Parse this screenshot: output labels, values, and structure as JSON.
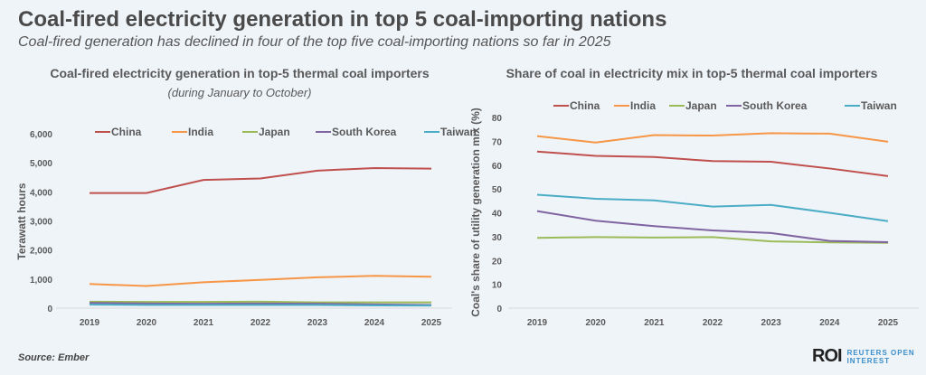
{
  "title": "Coal-fired electricity generation in top 5 coal-importing nations",
  "subtitle": "Coal-fired generation has declined in four of the top five coal-importing nations so far in 2025",
  "source": "Source:  Ember",
  "logo": {
    "mark": "ROI",
    "line1": "REUTERS OPEN",
    "line2": "INTEREST"
  },
  "colors": {
    "China": "#c0504d",
    "India": "#f79646",
    "Japan": "#9bbb59",
    "South Korea": "#8064a2",
    "Taiwan": "#4bacc6"
  },
  "chart_data": [
    {
      "type": "line",
      "title": "Coal-fired electricity generation in top-5 thermal coal importers",
      "subtitle": "(during January to October)",
      "ylabel": "Terawatt hours",
      "ylim": [
        0,
        6000
      ],
      "yticks": [
        "0",
        "1,000",
        "2,000",
        "3,000",
        "4,000",
        "5,000",
        "6,000"
      ],
      "legend": "top",
      "categories": [
        "2019",
        "2020",
        "2021",
        "2022",
        "2023",
        "2024",
        "2025"
      ],
      "series": [
        {
          "name": "China",
          "values": [
            3960,
            3960,
            4410,
            4460,
            4730,
            4820,
            4800
          ]
        },
        {
          "name": "India",
          "values": [
            830,
            760,
            890,
            970,
            1060,
            1110,
            1080
          ]
        },
        {
          "name": "Japan",
          "values": [
            220,
            215,
            215,
            220,
            200,
            200,
            200
          ]
        },
        {
          "name": "South Korea",
          "values": [
            180,
            160,
            150,
            160,
            150,
            130,
            110
          ]
        },
        {
          "name": "Taiwan",
          "values": [
            120,
            110,
            110,
            110,
            110,
            95,
            90
          ]
        }
      ]
    },
    {
      "type": "line",
      "title": "Share of coal in electricity mix in top-5 thermal coal importers",
      "ylabel": "Coal's share of utility generation mix (%)",
      "ylim": [
        0,
        80
      ],
      "yticks": [
        "0",
        "10",
        "20",
        "30",
        "40",
        "50",
        "60",
        "70",
        "80"
      ],
      "legend": "top",
      "categories": [
        "2019",
        "2020",
        "2021",
        "2022",
        "2023",
        "2024",
        "2025"
      ],
      "series": [
        {
          "name": "China",
          "values": [
            65.7,
            63.9,
            63.4,
            61.7,
            61.4,
            58.6,
            55.4
          ]
        },
        {
          "name": "India",
          "values": [
            72.2,
            69.5,
            72.6,
            72.4,
            73.4,
            73.2,
            69.8
          ]
        },
        {
          "name": "Japan",
          "values": [
            29.5,
            29.8,
            29.6,
            29.8,
            28.0,
            27.6,
            27.4
          ]
        },
        {
          "name": "South Korea",
          "values": [
            40.7,
            36.7,
            34.4,
            32.6,
            31.5,
            28.2,
            27.7
          ]
        },
        {
          "name": "Taiwan",
          "values": [
            47.6,
            45.9,
            45.2,
            42.6,
            43.3,
            40.0,
            36.5
          ]
        }
      ]
    }
  ]
}
